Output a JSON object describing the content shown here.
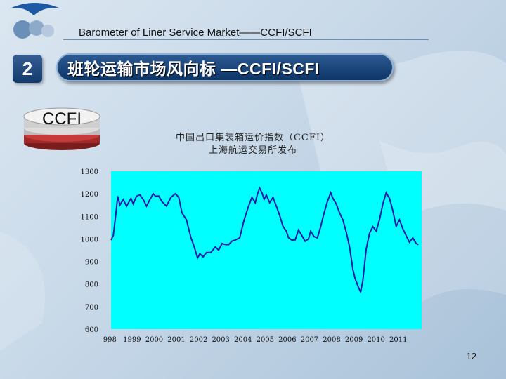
{
  "header": {
    "subtitle": "Barometer of Liner Service Market——CCFI/SCFI",
    "section_number": "2",
    "title": "班轮运输市场风向标 —CCFI/SCFI"
  },
  "badge": {
    "label": "CCFI"
  },
  "chart_data": {
    "type": "line",
    "title": "中国出口集装箱运价指数（CCFI）",
    "subtitle": "上海航运交易所发布",
    "xlabel": "",
    "ylabel": "",
    "ylim": [
      600,
      1300
    ],
    "yticks": [
      "1300",
      "1200",
      "1100",
      "1000",
      "900",
      "800",
      "700",
      "600"
    ],
    "xticks": [
      "998",
      "1999",
      "2000",
      "2001",
      "2002",
      "2003",
      "2004",
      "2005",
      "2006",
      "2007",
      "2008",
      "2009",
      "2010",
      "2011"
    ],
    "xlim": [
      1998.0,
      2012.0
    ],
    "line_color": "#1a1aa8",
    "plot_bg": "#00ffff",
    "series": [
      {
        "values": [
          [
            1998.0,
            1000
          ],
          [
            1998.1,
            1010
          ],
          [
            1998.2,
            1100
          ],
          [
            1998.3,
            1185
          ],
          [
            1998.4,
            1155
          ],
          [
            1998.55,
            1170
          ],
          [
            1998.7,
            1150
          ],
          [
            1998.9,
            1175
          ],
          [
            1999.0,
            1160
          ],
          [
            1999.15,
            1185
          ],
          [
            1999.3,
            1200
          ],
          [
            1999.45,
            1170
          ],
          [
            1999.6,
            1150
          ],
          [
            1999.75,
            1170
          ],
          [
            1999.9,
            1205
          ],
          [
            2000.0,
            1185
          ],
          [
            2000.15,
            1195
          ],
          [
            2000.3,
            1160
          ],
          [
            2000.5,
            1150
          ],
          [
            2000.7,
            1180
          ],
          [
            2000.9,
            1205
          ],
          [
            2001.05,
            1180
          ],
          [
            2001.2,
            1120
          ],
          [
            2001.4,
            1080
          ],
          [
            2001.6,
            1010
          ],
          [
            2001.75,
            960
          ],
          [
            2001.9,
            920
          ],
          [
            2002.0,
            930
          ],
          [
            2002.15,
            925
          ],
          [
            2002.3,
            935
          ],
          [
            2002.5,
            945
          ],
          [
            2002.7,
            960
          ],
          [
            2002.85,
            955
          ],
          [
            2003.0,
            975
          ],
          [
            2003.15,
            980
          ],
          [
            2003.3,
            970
          ],
          [
            2003.45,
            995
          ],
          [
            2003.6,
            990
          ],
          [
            2003.8,
            1010
          ],
          [
            2004.0,
            1080
          ],
          [
            2004.2,
            1150
          ],
          [
            2004.35,
            1180
          ],
          [
            2004.5,
            1165
          ],
          [
            2004.6,
            1195
          ],
          [
            2004.7,
            1230
          ],
          [
            2004.8,
            1200
          ],
          [
            2004.9,
            1180
          ],
          [
            2005.0,
            1190
          ],
          [
            2005.15,
            1165
          ],
          [
            2005.3,
            1180
          ],
          [
            2005.45,
            1150
          ],
          [
            2005.6,
            1100
          ],
          [
            2005.75,
            1060
          ],
          [
            2005.9,
            1030
          ],
          [
            2006.0,
            1010
          ],
          [
            2006.15,
            990
          ],
          [
            2006.3,
            1000
          ],
          [
            2006.45,
            1035
          ],
          [
            2006.6,
            1020
          ],
          [
            2006.75,
            985
          ],
          [
            2006.9,
            1005
          ],
          [
            2007.0,
            1030
          ],
          [
            2007.15,
            1015
          ],
          [
            2007.3,
            1000
          ],
          [
            2007.45,
            1060
          ],
          [
            2007.6,
            1110
          ],
          [
            2007.75,
            1170
          ],
          [
            2007.9,
            1200
          ],
          [
            2008.0,
            1185
          ],
          [
            2008.15,
            1150
          ],
          [
            2008.3,
            1120
          ],
          [
            2008.45,
            1080
          ],
          [
            2008.6,
            1035
          ],
          [
            2008.75,
            960
          ],
          [
            2008.9,
            870
          ],
          [
            2009.0,
            820
          ],
          [
            2009.15,
            790
          ],
          [
            2009.25,
            760
          ],
          [
            2009.35,
            820
          ],
          [
            2009.5,
            950
          ],
          [
            2009.65,
            1030
          ],
          [
            2009.8,
            1050
          ],
          [
            2009.95,
            1040
          ],
          [
            2010.1,
            1080
          ],
          [
            2010.25,
            1160
          ],
          [
            2010.4,
            1200
          ],
          [
            2010.55,
            1185
          ],
          [
            2010.7,
            1120
          ],
          [
            2010.85,
            1060
          ],
          [
            2011.0,
            1080
          ],
          [
            2011.15,
            1050
          ],
          [
            2011.3,
            1010
          ],
          [
            2011.45,
            990
          ],
          [
            2011.6,
            1000
          ],
          [
            2011.75,
            985
          ],
          [
            2011.85,
            970
          ]
        ]
      }
    ]
  },
  "footer": {
    "page_number": "12"
  }
}
